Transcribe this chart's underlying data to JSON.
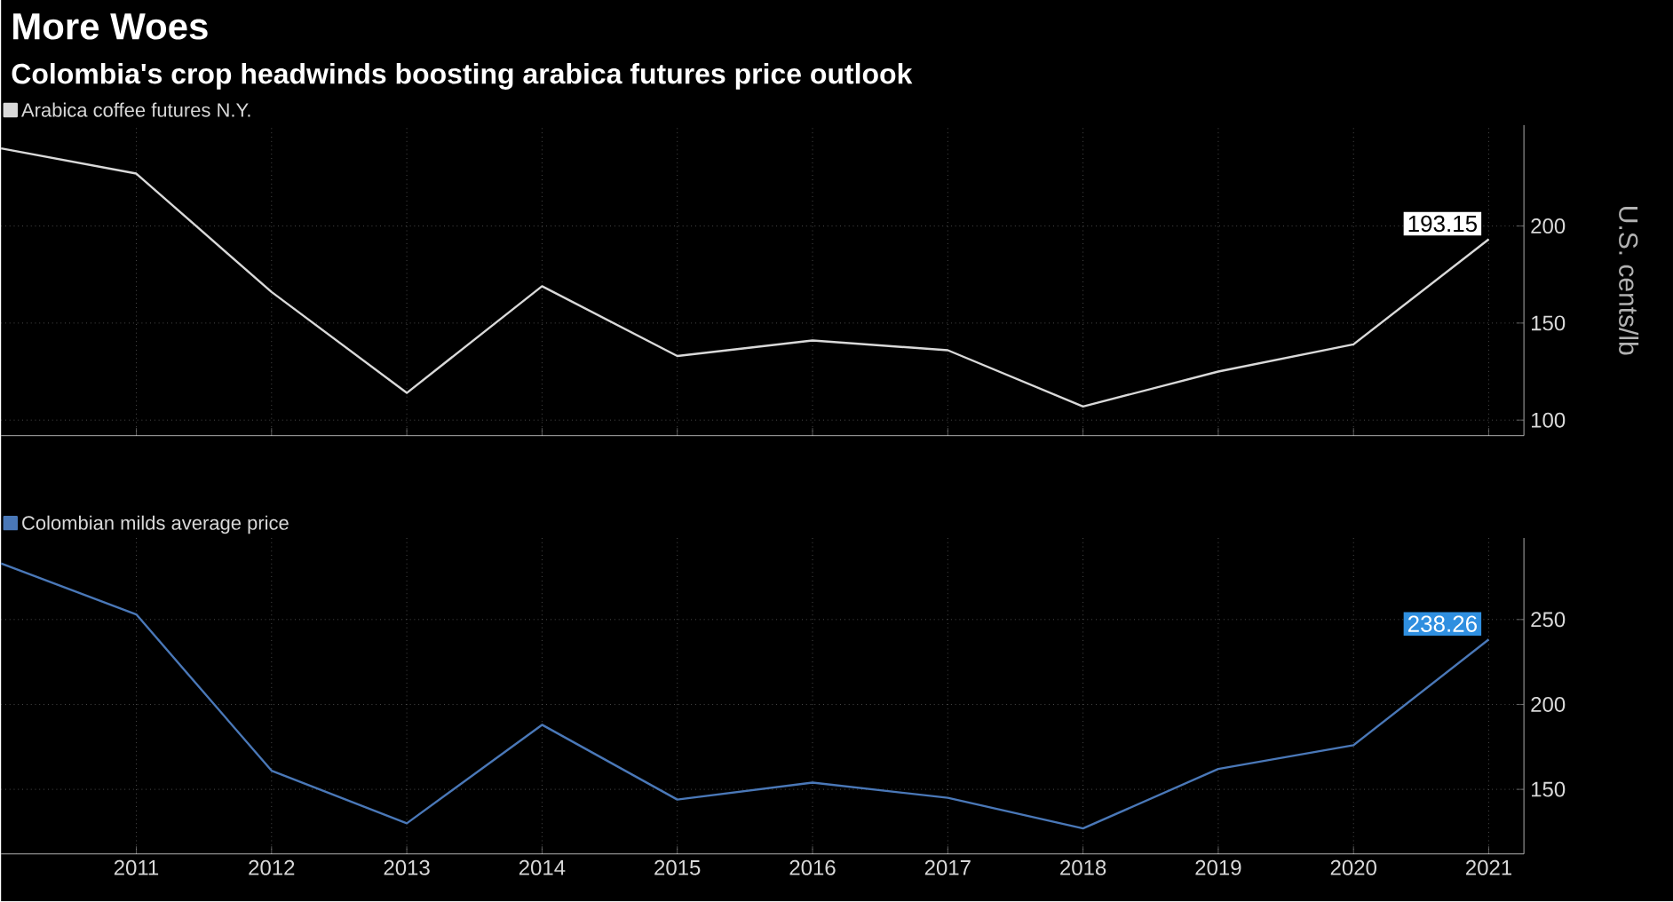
{
  "chart_data": [
    {
      "type": "line",
      "title": "More Woes",
      "subtitle": "Colombia's crop headwinds boosting arabica futures price outlook",
      "ylabel": "U.S. cents/lb",
      "x": [
        2010,
        2011,
        2012,
        2013,
        2014,
        2015,
        2016,
        2017,
        2018,
        2019,
        2020,
        2021
      ],
      "series": [
        {
          "name": "Arabica coffee futures N.Y.",
          "color": "#d9d9d9",
          "values": [
            240,
            227,
            166,
            114,
            169,
            133,
            141,
            136,
            107,
            125,
            139,
            193.15
          ],
          "value_labels": [
            null,
            null,
            null,
            null,
            null,
            null,
            null,
            null,
            null,
            null,
            null,
            "193.15"
          ]
        }
      ],
      "xlim": [
        2010,
        2021.26
      ],
      "xticks": [
        2011,
        2012,
        2013,
        2014,
        2015,
        2016,
        2017,
        2018,
        2019,
        2020,
        2021
      ],
      "ylim": [
        92,
        252
      ],
      "yticks": [
        100,
        150,
        200
      ],
      "grid": true,
      "legend": "top left",
      "tick_labels": "y",
      "marker": "none"
    },
    {
      "type": "line",
      "x": [
        2010,
        2011,
        2012,
        2013,
        2014,
        2015,
        2016,
        2017,
        2018,
        2019,
        2020,
        2021
      ],
      "series": [
        {
          "name": "Colombian milds average price",
          "color": "#4a78b8",
          "values": [
            283,
            253,
            161,
            130,
            188,
            144,
            154,
            145,
            127,
            162,
            176,
            238.26
          ],
          "value_labels": [
            null,
            null,
            null,
            null,
            null,
            null,
            null,
            null,
            null,
            null,
            null,
            "238.26"
          ]
        }
      ],
      "xlim": [
        2010,
        2021.26
      ],
      "xticks": [
        2011,
        2012,
        2013,
        2014,
        2015,
        2016,
        2017,
        2018,
        2019,
        2020,
        2021
      ],
      "ylim": [
        112,
        298
      ],
      "yticks": [
        150,
        200,
        250
      ],
      "grid": true,
      "legend": "top left",
      "marker": "none"
    }
  ]
}
